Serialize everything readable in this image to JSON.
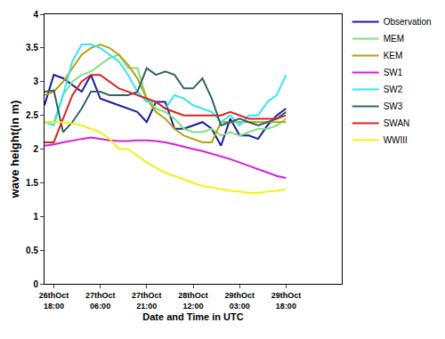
{
  "chart_data": {
    "type": "line",
    "x_label": "Date and Time in UTC",
    "y_label": "wave height(in m)",
    "categories": [
      null,
      "26thOct 18:00",
      null,
      null,
      null,
      null,
      "27thOct 06:00",
      null,
      null,
      null,
      null,
      "27thOct 21:00",
      null,
      null,
      null,
      null,
      "28thOct 12:00",
      null,
      null,
      null,
      null,
      "29thOct 03:00",
      null,
      null,
      null,
      null,
      "29thOct 18:00",
      null,
      null,
      null,
      null,
      null,
      null
    ],
    "ylim": [
      0,
      4
    ],
    "yticks": [
      0,
      0.5,
      1,
      1.5,
      2,
      2.5,
      3,
      3.5,
      4
    ],
    "grid": false,
    "legend": "right",
    "series": [
      {
        "name": "Observation",
        "color": "#1a1aa6",
        "values": [
          2.65,
          3.1,
          3.05,
          2.95,
          2.85,
          3.1,
          2.75,
          2.7,
          2.65,
          2.6,
          2.55,
          2.4,
          2.7,
          2.7,
          2.3,
          2.3,
          2.35,
          2.4,
          2.3,
          2.05,
          2.45,
          2.2,
          2.2,
          2.15,
          2.35,
          2.5,
          2.6,
          null,
          null,
          null,
          null,
          null,
          null
        ]
      },
      {
        "name": "MEM",
        "color": "#7ee07e",
        "values": [
          2.4,
          2.4,
          2.8,
          3.0,
          3.1,
          3.15,
          3.25,
          3.35,
          3.4,
          3.2,
          3.2,
          2.75,
          2.6,
          2.55,
          2.45,
          2.3,
          2.25,
          2.25,
          2.3,
          2.2,
          2.25,
          2.2,
          2.25,
          2.3,
          2.3,
          2.35,
          2.45,
          null,
          null,
          null,
          null,
          null,
          null
        ]
      },
      {
        "name": "KEM",
        "color": "#b5a30c",
        "values": [
          2.8,
          2.85,
          3.0,
          3.2,
          3.4,
          3.5,
          3.55,
          3.5,
          3.4,
          3.25,
          3.05,
          2.75,
          2.55,
          2.45,
          2.3,
          2.2,
          2.15,
          2.1,
          2.1,
          2.4,
          2.4,
          2.4,
          2.4,
          2.4,
          2.4,
          2.4,
          2.4,
          null,
          null,
          null,
          null,
          null,
          null
        ]
      },
      {
        "name": "SW1",
        "color": "#d61fd6",
        "values": [
          2.05,
          2.07,
          2.1,
          2.13,
          2.15,
          2.17,
          2.15,
          2.13,
          2.12,
          2.12,
          2.13,
          2.13,
          2.12,
          2.1,
          2.07,
          2.03,
          2.0,
          1.97,
          1.93,
          1.9,
          1.85,
          1.8,
          1.75,
          1.7,
          1.65,
          1.6,
          1.57,
          null,
          null,
          null,
          null,
          null,
          null
        ]
      },
      {
        "name": "SW2",
        "color": "#33e6f2",
        "values": [
          2.4,
          2.35,
          2.8,
          3.3,
          3.55,
          3.55,
          3.5,
          3.4,
          3.3,
          3.1,
          2.85,
          2.7,
          2.7,
          2.6,
          2.8,
          2.75,
          2.65,
          2.6,
          2.55,
          2.4,
          2.5,
          2.35,
          2.5,
          2.5,
          2.7,
          2.8,
          3.1,
          null,
          null,
          null,
          null,
          null,
          null
        ]
      },
      {
        "name": "SW3",
        "color": "#2f6464",
        "values": [
          2.85,
          2.87,
          2.25,
          2.4,
          2.6,
          2.85,
          2.85,
          2.8,
          2.8,
          2.8,
          2.85,
          3.2,
          3.1,
          3.15,
          3.1,
          2.9,
          2.9,
          3.05,
          2.75,
          2.35,
          2.4,
          2.45,
          2.4,
          2.35,
          2.4,
          2.45,
          2.55,
          null,
          null,
          null,
          null,
          null,
          null
        ]
      },
      {
        "name": "SWAN",
        "color": "#dd2222",
        "values": [
          2.1,
          2.1,
          2.45,
          2.8,
          3.0,
          3.1,
          3.1,
          3.0,
          2.9,
          2.85,
          2.8,
          2.75,
          2.7,
          2.6,
          2.55,
          2.5,
          2.5,
          2.5,
          2.5,
          2.5,
          2.55,
          2.5,
          2.45,
          2.45,
          2.45,
          2.45,
          2.5,
          null,
          null,
          null,
          null,
          null,
          null
        ]
      },
      {
        "name": "WWIII",
        "color": "#f2f20f",
        "values": [
          2.4,
          2.4,
          2.4,
          2.38,
          2.35,
          2.3,
          2.25,
          2.15,
          2.0,
          2.0,
          1.9,
          1.8,
          1.72,
          1.65,
          1.6,
          1.55,
          1.5,
          1.45,
          1.43,
          1.4,
          1.38,
          1.37,
          1.35,
          1.35,
          1.37,
          1.38,
          1.4,
          null,
          null,
          null,
          null,
          null,
          null
        ]
      }
    ]
  }
}
